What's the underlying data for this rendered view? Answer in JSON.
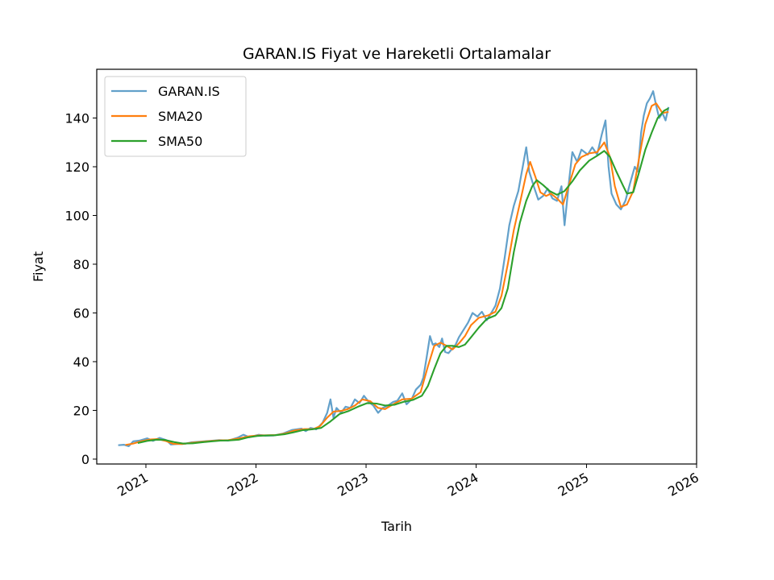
{
  "chart_data": {
    "type": "line",
    "title": "GARAN.IS Fiyat ve Hareketli Ortalamalar",
    "xlabel": "Tarih",
    "ylabel": "Fiyat",
    "xlim": [
      "2020-07-22",
      "2026-01-01"
    ],
    "ylim": [
      -2,
      160
    ],
    "x_ticks": [
      {
        "date": "2021-01-01",
        "label": "2021"
      },
      {
        "date": "2022-01-01",
        "label": "2022"
      },
      {
        "date": "2023-01-01",
        "label": "2023"
      },
      {
        "date": "2024-01-01",
        "label": "2024"
      },
      {
        "date": "2025-01-01",
        "label": "2025"
      },
      {
        "date": "2026-01-01",
        "label": "2026"
      }
    ],
    "y_ticks": [
      0,
      20,
      40,
      60,
      80,
      100,
      120,
      140
    ],
    "grid": false,
    "legend_position": "upper-left",
    "series": [
      {
        "name": "GARAN.IS",
        "color": "#1f77b4",
        "opacity": 0.7,
        "points": [
          [
            "2020-10-01",
            5.7
          ],
          [
            "2020-10-20",
            5.9
          ],
          [
            "2020-11-05",
            5.3
          ],
          [
            "2020-11-20",
            7.3
          ],
          [
            "2020-12-10",
            7.6
          ],
          [
            "2021-01-05",
            8.5
          ],
          [
            "2021-01-25",
            7.5
          ],
          [
            "2021-02-15",
            8.7
          ],
          [
            "2021-03-10",
            7.8
          ],
          [
            "2021-03-25",
            6.0
          ],
          [
            "2021-04-15",
            6.2
          ],
          [
            "2021-05-10",
            6.3
          ],
          [
            "2021-06-01",
            6.9
          ],
          [
            "2021-07-01",
            7.2
          ],
          [
            "2021-08-01",
            7.5
          ],
          [
            "2021-09-01",
            7.8
          ],
          [
            "2021-10-01",
            7.6
          ],
          [
            "2021-11-01",
            8.8
          ],
          [
            "2021-11-20",
            10.0
          ],
          [
            "2021-12-10",
            9.0
          ],
          [
            "2022-01-10",
            10.0
          ],
          [
            "2022-02-01",
            9.6
          ],
          [
            "2022-03-01",
            9.7
          ],
          [
            "2022-04-01",
            10.5
          ],
          [
            "2022-05-01",
            12.0
          ],
          [
            "2022-06-01",
            12.5
          ],
          [
            "2022-06-15",
            11.5
          ],
          [
            "2022-07-01",
            12.8
          ],
          [
            "2022-07-20",
            12.2
          ],
          [
            "2022-08-10",
            15.0
          ],
          [
            "2022-08-25",
            19.0
          ],
          [
            "2022-09-05",
            24.5
          ],
          [
            "2022-09-15",
            17.0
          ],
          [
            "2022-09-25",
            21.0
          ],
          [
            "2022-10-10",
            19.0
          ],
          [
            "2022-10-25",
            21.5
          ],
          [
            "2022-11-10",
            21.0
          ],
          [
            "2022-11-25",
            24.5
          ],
          [
            "2022-12-10",
            23.0
          ],
          [
            "2022-12-25",
            26.0
          ],
          [
            "2023-01-10",
            23.5
          ],
          [
            "2023-01-25",
            22.0
          ],
          [
            "2023-02-10",
            19.0
          ],
          [
            "2023-02-25",
            21.0
          ],
          [
            "2023-03-15",
            22.0
          ],
          [
            "2023-04-01",
            23.5
          ],
          [
            "2023-04-15",
            24.0
          ],
          [
            "2023-05-01",
            27.0
          ],
          [
            "2023-05-15",
            22.5
          ],
          [
            "2023-06-01",
            24.5
          ],
          [
            "2023-06-15",
            28.5
          ],
          [
            "2023-07-01",
            30.5
          ],
          [
            "2023-07-10",
            33.5
          ],
          [
            "2023-07-20",
            41.0
          ],
          [
            "2023-08-01",
            50.5
          ],
          [
            "2023-08-10",
            47.0
          ],
          [
            "2023-08-20",
            47.5
          ],
          [
            "2023-09-01",
            46.0
          ],
          [
            "2023-09-10",
            49.5
          ],
          [
            "2023-09-20",
            44.0
          ],
          [
            "2023-10-01",
            43.5
          ],
          [
            "2023-10-15",
            45.5
          ],
          [
            "2023-10-25",
            47.0
          ],
          [
            "2023-11-05",
            50.0
          ],
          [
            "2023-11-20",
            53.0
          ],
          [
            "2023-12-05",
            56.0
          ],
          [
            "2023-12-20",
            60.0
          ],
          [
            "2024-01-05",
            58.5
          ],
          [
            "2024-01-20",
            60.5
          ],
          [
            "2024-02-05",
            57.0
          ],
          [
            "2024-02-20",
            60.0
          ],
          [
            "2024-03-05",
            63.0
          ],
          [
            "2024-03-20",
            70.0
          ],
          [
            "2024-04-05",
            83.0
          ],
          [
            "2024-04-20",
            96.0
          ],
          [
            "2024-05-05",
            104.0
          ],
          [
            "2024-05-20",
            110.0
          ],
          [
            "2024-06-05",
            121.0
          ],
          [
            "2024-06-15",
            128.0
          ],
          [
            "2024-06-25",
            118.0
          ],
          [
            "2024-07-10",
            112.0
          ],
          [
            "2024-07-25",
            106.5
          ],
          [
            "2024-08-10",
            108.0
          ],
          [
            "2024-08-25",
            111.0
          ],
          [
            "2024-09-10",
            107.0
          ],
          [
            "2024-09-25",
            106.0
          ],
          [
            "2024-10-10",
            112.0
          ],
          [
            "2024-10-20",
            96.0
          ],
          [
            "2024-11-05",
            115.0
          ],
          [
            "2024-11-15",
            126.0
          ],
          [
            "2024-12-01",
            122.0
          ],
          [
            "2024-12-15",
            127.0
          ],
          [
            "2025-01-05",
            125.0
          ],
          [
            "2025-01-20",
            128.0
          ],
          [
            "2025-02-05",
            125.0
          ],
          [
            "2025-02-20",
            133.0
          ],
          [
            "2025-03-05",
            139.0
          ],
          [
            "2025-03-15",
            120.0
          ],
          [
            "2025-03-25",
            109.0
          ],
          [
            "2025-04-10",
            104.5
          ],
          [
            "2025-04-25",
            102.5
          ],
          [
            "2025-05-10",
            106.0
          ],
          [
            "2025-05-25",
            113.0
          ],
          [
            "2025-06-10",
            120.0
          ],
          [
            "2025-06-20",
            118.0
          ],
          [
            "2025-07-01",
            134.0
          ],
          [
            "2025-07-10",
            141.0
          ],
          [
            "2025-07-20",
            146.0
          ],
          [
            "2025-07-30",
            148.0
          ],
          [
            "2025-08-10",
            151.0
          ],
          [
            "2025-08-20",
            145.0
          ],
          [
            "2025-08-30",
            140.0
          ],
          [
            "2025-09-10",
            142.0
          ],
          [
            "2025-09-20",
            139.0
          ],
          [
            "2025-09-30",
            144.5
          ]
        ]
      },
      {
        "name": "SMA20",
        "color": "#ff7f0e",
        "opacity": 1,
        "points": [
          [
            "2020-10-25",
            5.8
          ],
          [
            "2020-11-20",
            6.4
          ],
          [
            "2020-12-15",
            7.3
          ],
          [
            "2021-01-15",
            8.1
          ],
          [
            "2021-02-10",
            8.2
          ],
          [
            "2021-03-10",
            7.4
          ],
          [
            "2021-04-01",
            6.3
          ],
          [
            "2021-05-01",
            6.2
          ],
          [
            "2021-06-01",
            6.7
          ],
          [
            "2021-07-01",
            7.1
          ],
          [
            "2021-08-01",
            7.4
          ],
          [
            "2021-09-01",
            7.7
          ],
          [
            "2021-10-01",
            7.8
          ],
          [
            "2021-11-10",
            8.6
          ],
          [
            "2021-12-10",
            9.4
          ],
          [
            "2022-01-10",
            9.7
          ],
          [
            "2022-02-10",
            9.8
          ],
          [
            "2022-03-10",
            9.9
          ],
          [
            "2022-04-10",
            10.6
          ],
          [
            "2022-05-10",
            11.8
          ],
          [
            "2022-06-10",
            12.3
          ],
          [
            "2022-07-10",
            12.3
          ],
          [
            "2022-08-01",
            13.5
          ],
          [
            "2022-08-25",
            17.0
          ],
          [
            "2022-09-15",
            19.5
          ],
          [
            "2022-10-10",
            19.8
          ],
          [
            "2022-11-01",
            20.5
          ],
          [
            "2022-11-25",
            22.0
          ],
          [
            "2022-12-20",
            24.5
          ],
          [
            "2023-01-15",
            23.8
          ],
          [
            "2023-02-10",
            21.0
          ],
          [
            "2023-03-05",
            20.5
          ],
          [
            "2023-04-01",
            22.5
          ],
          [
            "2023-05-01",
            24.5
          ],
          [
            "2023-06-01",
            24.8
          ],
          [
            "2023-07-01",
            27.5
          ],
          [
            "2023-07-25",
            38.0
          ],
          [
            "2023-08-15",
            46.5
          ],
          [
            "2023-09-05",
            47.8
          ],
          [
            "2023-09-25",
            46.5
          ],
          [
            "2023-10-15",
            45.0
          ],
          [
            "2023-11-05",
            47.5
          ],
          [
            "2023-11-25",
            50.5
          ],
          [
            "2023-12-15",
            55.0
          ],
          [
            "2024-01-10",
            58.0
          ],
          [
            "2024-02-10",
            59.0
          ],
          [
            "2024-03-05",
            60.5
          ],
          [
            "2024-03-25",
            67.0
          ],
          [
            "2024-04-15",
            80.0
          ],
          [
            "2024-05-05",
            94.0
          ],
          [
            "2024-05-25",
            105.0
          ],
          [
            "2024-06-15",
            117.0
          ],
          [
            "2024-06-28",
            122.0
          ],
          [
            "2024-07-15",
            116.0
          ],
          [
            "2024-08-01",
            109.5
          ],
          [
            "2024-08-20",
            108.0
          ],
          [
            "2024-09-05",
            109.0
          ],
          [
            "2024-09-25",
            107.0
          ],
          [
            "2024-10-15",
            104.5
          ],
          [
            "2024-11-05",
            113.0
          ],
          [
            "2024-11-25",
            121.0
          ],
          [
            "2024-12-15",
            124.0
          ],
          [
            "2025-01-10",
            125.5
          ],
          [
            "2025-02-05",
            126.0
          ],
          [
            "2025-03-01",
            130.0
          ],
          [
            "2025-03-20",
            124.0
          ],
          [
            "2025-04-05",
            112.0
          ],
          [
            "2025-04-25",
            103.5
          ],
          [
            "2025-05-15",
            104.5
          ],
          [
            "2025-06-05",
            110.0
          ],
          [
            "2025-06-25",
            124.0
          ],
          [
            "2025-07-15",
            137.5
          ],
          [
            "2025-08-05",
            145.0
          ],
          [
            "2025-08-20",
            146.0
          ],
          [
            "2025-09-10",
            142.0
          ],
          [
            "2025-09-30",
            142.5
          ]
        ]
      },
      {
        "name": "SMA50",
        "color": "#2ca02c",
        "opacity": 1,
        "points": [
          [
            "2020-12-05",
            6.6
          ],
          [
            "2021-01-05",
            7.5
          ],
          [
            "2021-02-05",
            8.0
          ],
          [
            "2021-03-05",
            7.9
          ],
          [
            "2021-04-05",
            7.0
          ],
          [
            "2021-05-05",
            6.4
          ],
          [
            "2021-06-05",
            6.5
          ],
          [
            "2021-07-05",
            6.9
          ],
          [
            "2021-08-05",
            7.3
          ],
          [
            "2021-09-05",
            7.6
          ],
          [
            "2021-10-05",
            7.7
          ],
          [
            "2021-11-05",
            8.0
          ],
          [
            "2021-12-05",
            8.9
          ],
          [
            "2022-01-05",
            9.5
          ],
          [
            "2022-02-05",
            9.7
          ],
          [
            "2022-03-05",
            9.8
          ],
          [
            "2022-04-05",
            10.2
          ],
          [
            "2022-05-05",
            11.0
          ],
          [
            "2022-06-05",
            11.9
          ],
          [
            "2022-07-05",
            12.2
          ],
          [
            "2022-08-05",
            12.8
          ],
          [
            "2022-09-05",
            15.5
          ],
          [
            "2022-10-05",
            18.5
          ],
          [
            "2022-11-05",
            19.8
          ],
          [
            "2022-12-05",
            21.5
          ],
          [
            "2023-01-05",
            23.0
          ],
          [
            "2023-02-05",
            22.8
          ],
          [
            "2023-03-05",
            22.0
          ],
          [
            "2023-04-05",
            22.3
          ],
          [
            "2023-05-05",
            23.5
          ],
          [
            "2023-06-05",
            24.3
          ],
          [
            "2023-07-05",
            26.0
          ],
          [
            "2023-07-25",
            30.0
          ],
          [
            "2023-08-15",
            37.0
          ],
          [
            "2023-09-05",
            43.5
          ],
          [
            "2023-09-25",
            46.5
          ],
          [
            "2023-10-15",
            46.5
          ],
          [
            "2023-11-05",
            46.0
          ],
          [
            "2023-11-25",
            47.0
          ],
          [
            "2023-12-15",
            50.0
          ],
          [
            "2024-01-10",
            54.0
          ],
          [
            "2024-02-05",
            57.5
          ],
          [
            "2024-03-05",
            59.0
          ],
          [
            "2024-03-25",
            62.0
          ],
          [
            "2024-04-15",
            70.0
          ],
          [
            "2024-05-05",
            85.0
          ],
          [
            "2024-05-25",
            97.0
          ],
          [
            "2024-06-15",
            106.0
          ],
          [
            "2024-07-05",
            112.0
          ],
          [
            "2024-07-20",
            114.5
          ],
          [
            "2024-08-10",
            112.5
          ],
          [
            "2024-09-01",
            110.0
          ],
          [
            "2024-09-25",
            108.5
          ],
          [
            "2024-10-20",
            110.0
          ],
          [
            "2024-11-15",
            114.0
          ],
          [
            "2024-12-10",
            118.5
          ],
          [
            "2025-01-10",
            122.5
          ],
          [
            "2025-02-05",
            124.5
          ],
          [
            "2025-03-01",
            126.5
          ],
          [
            "2025-03-20",
            124.0
          ],
          [
            "2025-04-10",
            118.0
          ],
          [
            "2025-05-01",
            112.5
          ],
          [
            "2025-05-15",
            109.0
          ],
          [
            "2025-06-05",
            109.5
          ],
          [
            "2025-06-25",
            118.0
          ],
          [
            "2025-07-15",
            127.0
          ],
          [
            "2025-08-05",
            134.0
          ],
          [
            "2025-08-25",
            140.0
          ],
          [
            "2025-09-15",
            143.0
          ],
          [
            "2025-09-30",
            144.0
          ]
        ]
      }
    ]
  }
}
